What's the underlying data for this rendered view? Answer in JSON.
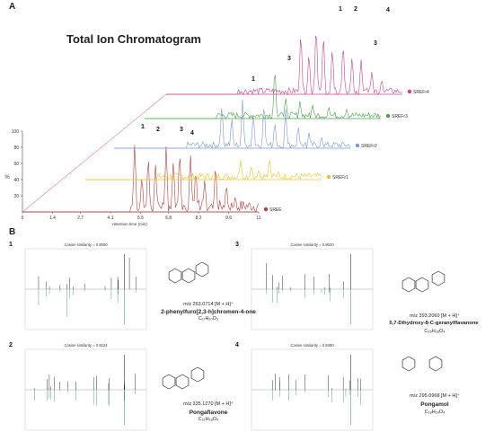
{
  "panelA": {
    "letter": "A",
    "title": "Total Ion Chromatogram"
  },
  "panelB": {
    "letter": "B"
  },
  "chart_data": [
    {
      "type": "line",
      "title": "Total Ion Chromatogram",
      "xlabel": "retention time (min)",
      "ylabel": "%",
      "x_ticks": [
        "0",
        "1.4",
        "2.7",
        "4.1",
        "5.5",
        "6.8",
        "8.2",
        "9.6",
        "11"
      ],
      "y_ticks": [
        "20",
        "40",
        "60",
        "80",
        "100"
      ],
      "xlim": [
        0,
        11
      ],
      "ylim": [
        0,
        100
      ],
      "series": [
        {
          "name": "SREE",
          "color": "#b0413e",
          "peak_labels": [
            "1",
            "2",
            "3",
            "4"
          ]
        },
        {
          "name": "SREFr1",
          "color": "#e8c22c"
        },
        {
          "name": "SREFr2",
          "color": "#7d98cf",
          "peak_labels": [
            "1"
          ]
        },
        {
          "name": "SREFr3",
          "color": "#4aa04a",
          "peak_labels": [
            "3"
          ]
        },
        {
          "name": "SREFr4",
          "color": "#c4458c",
          "peak_labels": [
            "1",
            "2",
            "4",
            "3"
          ]
        }
      ]
    },
    {
      "type": "bar",
      "subtype": "mirror spectrum",
      "panel": "1",
      "title": "Cosine similarity = 0.9000",
      "compound": "2-phenylfuro[2,3-h]chromen-4-one",
      "mz": "m/z 263.0714 [M + H]⁺",
      "formula": "C₁₇H₁₀O₃"
    },
    {
      "type": "bar",
      "subtype": "mirror spectrum",
      "panel": "2",
      "title": "Cosine similarity = 0.9224",
      "compound": "Pongaflavone",
      "mz": "m/z 335.1270 [M + H]⁺",
      "formula": "C₂₁H₁₈O₄"
    },
    {
      "type": "bar",
      "subtype": "mirror spectrum",
      "panel": "3",
      "title": "Cosine similarity = 0.9620",
      "compound": "5,7-Dihydroxy-8-C-geranylflavanone",
      "mz": "m/z 393.2060 [M + H]⁺",
      "formula": "C₂₅H₂₈O₄"
    },
    {
      "type": "bar",
      "subtype": "mirror spectrum",
      "panel": "4",
      "title": "Cosine similarity = 0.9380",
      "compound": "Pongamol",
      "mz": "m/z 295.0968 [M + H]⁺",
      "formula": "C₁₈H₁₄O₄"
    }
  ]
}
